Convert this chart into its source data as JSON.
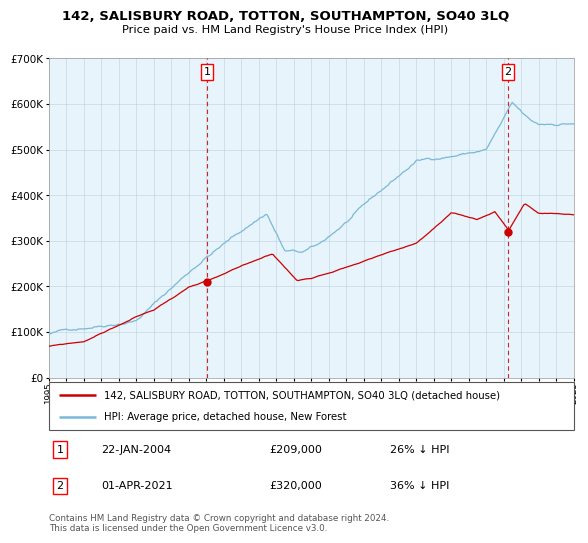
{
  "title": "142, SALISBURY ROAD, TOTTON, SOUTHAMPTON, SO40 3LQ",
  "subtitle": "Price paid vs. HM Land Registry's House Price Index (HPI)",
  "legend_line1": "142, SALISBURY ROAD, TOTTON, SOUTHAMPTON, SO40 3LQ (detached house)",
  "legend_line2": "HPI: Average price, detached house, New Forest",
  "annotation1_date": "22-JAN-2004",
  "annotation1_price": "£209,000",
  "annotation1_hpi": "26% ↓ HPI",
  "annotation2_date": "01-APR-2021",
  "annotation2_price": "£320,000",
  "annotation2_hpi": "36% ↓ HPI",
  "footer": "Contains HM Land Registry data © Crown copyright and database right 2024.\nThis data is licensed under the Open Government Licence v3.0.",
  "hpi_color": "#7ab8d9",
  "price_color": "#cc0000",
  "vline_color": "#cc0000",
  "chart_bg": "#e8f4fb",
  "grid_color": "#b0c8d8",
  "ylim": [
    0,
    700000
  ],
  "sale1_year": 2004.05,
  "sale1_price": 209000,
  "sale2_year": 2021.25,
  "sale2_price": 320000,
  "xmin": 1995,
  "xmax": 2025
}
